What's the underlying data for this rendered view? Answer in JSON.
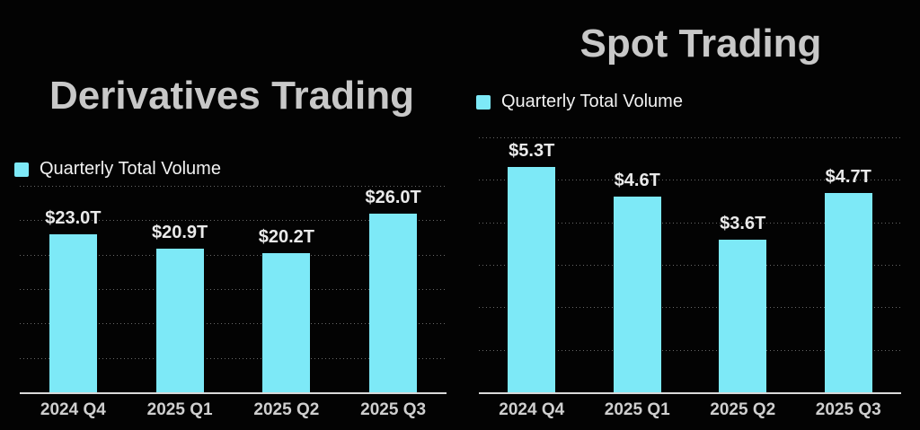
{
  "colors": {
    "background": "#030303",
    "bar_fill": "#7DE9F7",
    "title_text": "#c8c8c8",
    "legend_text": "#f2f2f2",
    "value_label_text": "#eaeaea",
    "axis_label_text": "#cfcfcf",
    "baseline": "#d9d9d9",
    "gridline_dots": "#6b6b6b"
  },
  "chart_data": [
    {
      "type": "bar",
      "title": "Derivatives Trading",
      "legend": "Quarterly Total Volume",
      "legend_position": "top-left",
      "categories": [
        "2024 Q4",
        "2025 Q1",
        "2025 Q2",
        "2025 Q3"
      ],
      "values": [
        23.0,
        20.9,
        20.2,
        26.0
      ],
      "value_labels": [
        "$23.0T",
        "$20.9T",
        "$20.2T",
        "$26.0T"
      ],
      "xlabel": "",
      "ylabel": "",
      "ylim": [
        0,
        30
      ],
      "grid_step": 5,
      "grid": true,
      "bar_color": "#7DE9F7"
    },
    {
      "type": "bar",
      "title": "Spot Trading",
      "legend": "Quarterly Total Volume",
      "legend_position": "top-left",
      "categories": [
        "2024 Q4",
        "2025 Q1",
        "2025 Q2",
        "2025 Q3"
      ],
      "values": [
        5.3,
        4.6,
        3.6,
        4.7
      ],
      "value_labels": [
        "$5.3T",
        "$4.6T",
        "$3.6T",
        "$4.7T"
      ],
      "xlabel": "",
      "ylabel": "",
      "ylim": [
        0,
        6
      ],
      "grid_step": 1,
      "grid": true,
      "bar_color": "#7DE9F7"
    }
  ]
}
